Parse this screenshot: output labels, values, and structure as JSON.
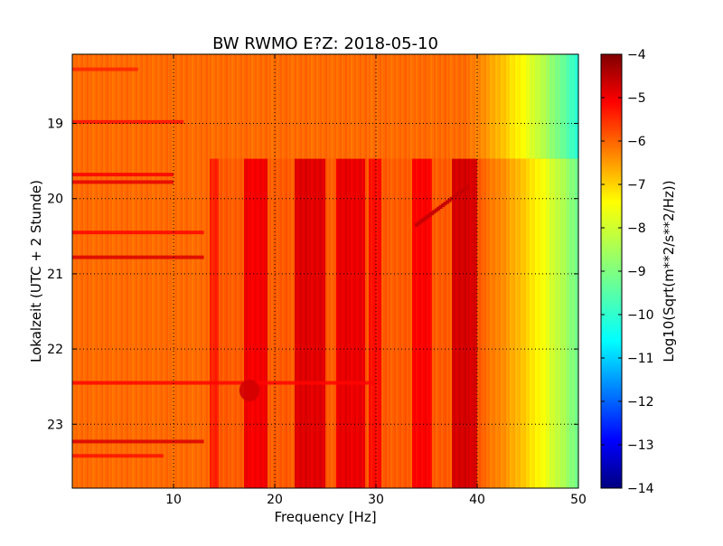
{
  "chart_data": {
    "type": "heatmap",
    "title": "BW RWMO E?Z: 2018-05-10",
    "xlabel": "Frequency [Hz]",
    "ylabel": "Lokalzeit (UTC + 2 Stunde)",
    "xlim": [
      0,
      50
    ],
    "ylim": [
      23.85,
      18.08
    ],
    "x_ticks": [
      10,
      20,
      30,
      40,
      50
    ],
    "y_ticks": [
      19,
      20,
      21,
      22,
      23
    ],
    "grid": true,
    "colormap": "jet",
    "colorbar": {
      "label": "Log10(Sqrt(m**2/s**2/Hz))",
      "range": [
        -14,
        -4
      ],
      "ticks": [
        -4,
        -5,
        -6,
        -7,
        -8,
        -9,
        -10,
        -11,
        -12,
        -13,
        -14
      ]
    },
    "background_level": -6.3,
    "change_time_hours": 19.47,
    "rolloff_before": {
      "start_hz": 38.5,
      "end_hz": 51.0,
      "end_value": -10.3
    },
    "rolloff_after": {
      "start_hz": 40.5,
      "end_hz": 52.0,
      "end_value": -10.0
    },
    "vertical_bands": [
      {
        "from_hz": 13.5,
        "to_hz": 14.5,
        "value": -5.7,
        "after_change_only": true
      },
      {
        "from_hz": 17.0,
        "to_hz": 19.2,
        "value": -5.3,
        "after_change_only": true
      },
      {
        "from_hz": 22.0,
        "to_hz": 25.0,
        "value": -5.1,
        "after_change_only": true
      },
      {
        "from_hz": 26.0,
        "to_hz": 29.0,
        "value": -5.2,
        "after_change_only": true
      },
      {
        "from_hz": 29.2,
        "to_hz": 30.5,
        "value": -5.5,
        "after_change_only": true
      },
      {
        "from_hz": 33.5,
        "to_hz": 35.5,
        "value": -5.4,
        "after_change_only": true
      },
      {
        "from_hz": 37.5,
        "to_hz": 40.0,
        "value": -5.0,
        "after_change_only": true
      }
    ],
    "horizontal_streaks": [
      {
        "time": 18.28,
        "from_hz": 0,
        "to_hz": 6.5,
        "value": -5.6
      },
      {
        "time": 18.98,
        "from_hz": 0,
        "to_hz": 11.0,
        "value": -5.4
      },
      {
        "time": 19.68,
        "from_hz": 0,
        "to_hz": 10.0,
        "value": -5.2
      },
      {
        "time": 19.78,
        "from_hz": 0,
        "to_hz": 10.0,
        "value": -5.0
      },
      {
        "time": 20.45,
        "from_hz": 0,
        "to_hz": 13.0,
        "value": -5.3
      },
      {
        "time": 20.78,
        "from_hz": 0,
        "to_hz": 13.0,
        "value": -4.9
      },
      {
        "time": 22.45,
        "from_hz": 0,
        "to_hz": 30.0,
        "value": -5.3
      },
      {
        "time": 23.23,
        "from_hz": 0,
        "to_hz": 13.0,
        "value": -4.9
      },
      {
        "time": 23.42,
        "from_hz": 0,
        "to_hz": 9.0,
        "value": -5.4
      }
    ],
    "features": [
      {
        "kind": "chirp",
        "time_from": 20.35,
        "time_to": 19.85,
        "from_hz": 34.0,
        "to_hz": 39.0,
        "value": -4.7
      },
      {
        "kind": "burst",
        "time": 22.55,
        "from_hz": 16.5,
        "to_hz": 18.5,
        "value": -4.8
      }
    ]
  }
}
